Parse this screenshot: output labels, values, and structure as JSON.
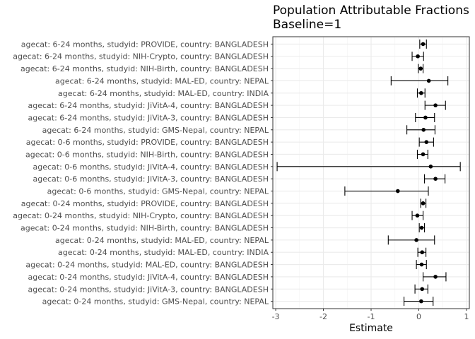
{
  "chart_data": {
    "type": "scatter",
    "title": "Population Attributable Fractions",
    "subtitle": "Baseline=1",
    "xlabel": "Estimate",
    "ylabel": "",
    "xlim": [
      -3.06,
      1.06
    ],
    "xticks": [
      -3,
      -2,
      -1,
      0,
      1
    ],
    "grid": true,
    "error_bars": "horizontal",
    "rows": [
      {
        "label": "agecat: 6-24 months, studyid: PROVIDE, country: BANGLADESH",
        "estimate": 0.09,
        "lower": 0.02,
        "upper": 0.16
      },
      {
        "label": "agecat: 6-24 months, studyid: NIH-Crypto, country: BANGLADESH",
        "estimate": -0.02,
        "lower": -0.14,
        "upper": 0.1
      },
      {
        "label": "agecat: 6-24 months, studyid: NIH-Birth, country: BANGLADESH",
        "estimate": 0.04,
        "lower": -0.01,
        "upper": 0.09
      },
      {
        "label": "agecat: 6-24 months, studyid: MAL-ED, country: NEPAL",
        "estimate": 0.21,
        "lower": -0.58,
        "upper": 0.61
      },
      {
        "label": "agecat: 6-24 months, studyid: MAL-ED, country: INDIA",
        "estimate": 0.05,
        "lower": -0.03,
        "upper": 0.13
      },
      {
        "label": "agecat: 6-24 months, studyid: JiVitA-4, country: BANGLADESH",
        "estimate": 0.35,
        "lower": 0.13,
        "upper": 0.56
      },
      {
        "label": "agecat: 6-24 months, studyid: JiVitA-3, country: BANGLADESH",
        "estimate": 0.14,
        "lower": -0.07,
        "upper": 0.33
      },
      {
        "label": "agecat: 6-24 months, studyid: GMS-Nepal, country: NEPAL",
        "estimate": 0.1,
        "lower": -0.25,
        "upper": 0.34
      },
      {
        "label": "agecat: 0-6 months, studyid: PROVIDE, country: BANGLADESH",
        "estimate": 0.16,
        "lower": 0.01,
        "upper": 0.31
      },
      {
        "label": "agecat: 0-6 months, studyid: NIH-Birth, country: BANGLADESH",
        "estimate": 0.09,
        "lower": -0.03,
        "upper": 0.19
      },
      {
        "label": "agecat: 0-6 months, studyid: JiVitA-4, country: BANGLADESH",
        "estimate": 0.25,
        "lower": -2.97,
        "upper": 0.87
      },
      {
        "label": "agecat: 0-6 months, studyid: JiVitA-3, country: BANGLADESH",
        "estimate": 0.35,
        "lower": 0.12,
        "upper": 0.55
      },
      {
        "label": "agecat: 0-6 months, studyid: GMS-Nepal, country: NEPAL",
        "estimate": -0.44,
        "lower": -1.55,
        "upper": 0.2
      },
      {
        "label": "agecat: 0-24 months, studyid: PROVIDE, country: BANGLADESH",
        "estimate": 0.09,
        "lower": 0.04,
        "upper": 0.15
      },
      {
        "label": "agecat: 0-24 months, studyid: NIH-Crypto, country: BANGLADESH",
        "estimate": -0.03,
        "lower": -0.14,
        "upper": 0.09
      },
      {
        "label": "agecat: 0-24 months, studyid: NIH-Birth, country: BANGLADESH",
        "estimate": 0.06,
        "lower": 0.01,
        "upper": 0.12
      },
      {
        "label": "agecat: 0-24 months, studyid: MAL-ED, country: NEPAL",
        "estimate": -0.05,
        "lower": -0.64,
        "upper": 0.33
      },
      {
        "label": "agecat: 0-24 months, studyid: MAL-ED, country: INDIA",
        "estimate": 0.07,
        "lower": -0.02,
        "upper": 0.15
      },
      {
        "label": "agecat: 0-24 months, studyid: MAL-ED, country: BANGLADESH",
        "estimate": 0.06,
        "lower": -0.05,
        "upper": 0.16
      },
      {
        "label": "agecat: 0-24 months, studyid: JiVitA-4, country: BANGLADESH",
        "estimate": 0.35,
        "lower": 0.09,
        "upper": 0.57
      },
      {
        "label": "agecat: 0-24 months, studyid: JiVitA-3, country: BANGLADESH",
        "estimate": 0.07,
        "lower": -0.08,
        "upper": 0.19
      },
      {
        "label": "agecat: 0-24 months, studyid: GMS-Nepal, country: NEPAL",
        "estimate": 0.05,
        "lower": -0.31,
        "upper": 0.3
      }
    ]
  }
}
